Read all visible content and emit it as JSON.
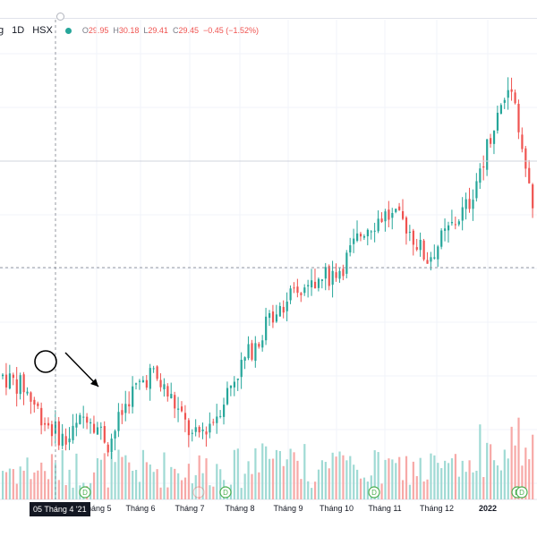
{
  "header": {
    "symbol": "g",
    "interval": "1D",
    "exchange": "HSX",
    "ohlc": [
      {
        "key": "O",
        "value": "29.95"
      },
      {
        "key": "H",
        "value": "30.18"
      },
      {
        "key": "L",
        "value": "29.41"
      },
      {
        "key": "C",
        "value": "29.45"
      },
      {
        "key": "",
        "value": "−0.45 (−1.52%)"
      }
    ]
  },
  "colors": {
    "up": "#26a69a",
    "down": "#ef5350",
    "up_volume": "#9fdad4",
    "down_volume": "#f7a9a7",
    "crosshair": "#9598a1",
    "grid": "#f0f3fa",
    "dividend_marker": "#4caf50",
    "annotation": "#000000"
  },
  "xaxis": {
    "crosshair_date": "05 Tháng 4 '21",
    "labels": [
      "Tháng 5",
      "Tháng 6",
      "Tháng 7",
      "Tháng 8",
      "Tháng 9",
      "Tháng 10",
      "Tháng 11",
      "Tháng 12",
      "2022"
    ]
  },
  "markers": [
    {
      "type": "dividend-icon",
      "label": "D"
    },
    {
      "type": "dividend-icon",
      "label": "D"
    },
    {
      "type": "dividend-icon",
      "label": "D"
    },
    {
      "type": "dividend-icon",
      "label": "D"
    },
    {
      "type": "dividend-icon",
      "label": "D"
    }
  ],
  "chart_data": {
    "type": "candlestick",
    "title": "",
    "xlabel": "",
    "ylabel": "",
    "note": "Daily candles with volume histogram; price axis not visible",
    "trend": [
      28.8,
      28.2,
      26.4,
      25.3,
      26.9,
      25.2,
      27.8,
      29.0,
      27.5,
      25.4,
      26.6,
      28.9,
      30.7,
      32.6,
      33.2,
      33.9,
      34.6,
      36.6,
      37.4,
      36.9,
      35.0,
      36.5,
      38.0,
      41.6,
      44.5,
      37.5
    ]
  }
}
